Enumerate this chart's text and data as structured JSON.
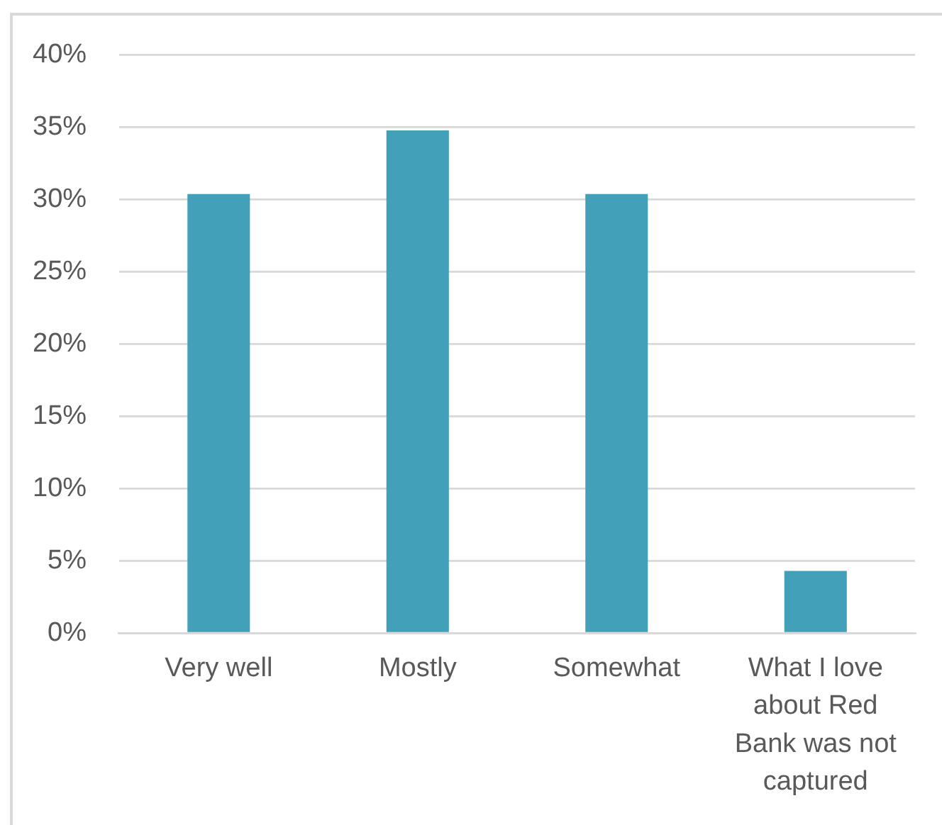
{
  "chart_data": {
    "type": "bar",
    "categories": [
      "Very well",
      "Mostly",
      "Somewhat",
      "What I love about Red Bank was not captured"
    ],
    "values": [
      30.4,
      34.8,
      30.4,
      4.3
    ],
    "color": "#42a0b9",
    "ylim": [
      0,
      40
    ],
    "yticks": [
      {
        "value": 0,
        "label": "0%"
      },
      {
        "value": 5,
        "label": "5%"
      },
      {
        "value": 10,
        "label": "10%"
      },
      {
        "value": 15,
        "label": "15%"
      },
      {
        "value": 20,
        "label": "20%"
      },
      {
        "value": 25,
        "label": "25%"
      },
      {
        "value": 30,
        "label": "30%"
      },
      {
        "value": 35,
        "label": "35%"
      },
      {
        "value": 40,
        "label": "40%"
      }
    ],
    "grid": "y"
  }
}
